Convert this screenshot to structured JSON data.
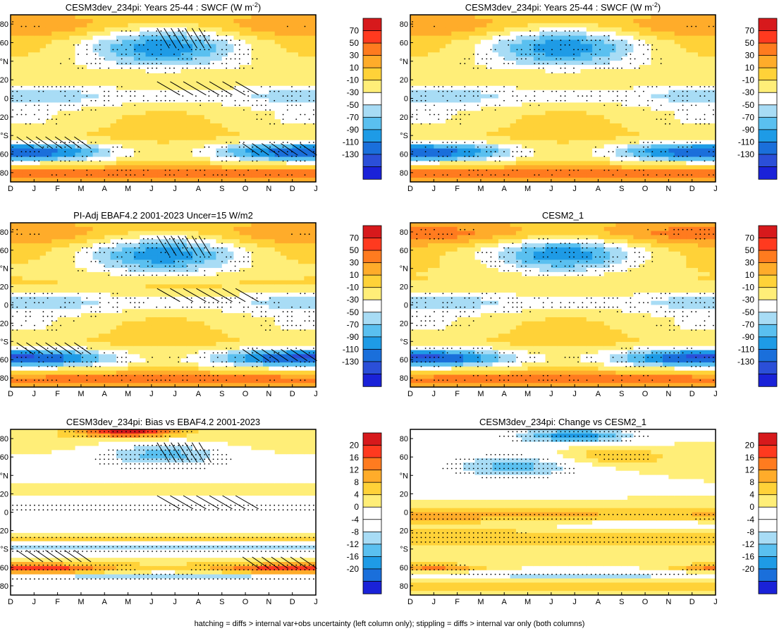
{
  "month_labels": [
    "D",
    "J",
    "F",
    "M",
    "A",
    "M",
    "J",
    "J",
    "A",
    "S",
    "O",
    "N",
    "D",
    "J"
  ],
  "lat_labels": [
    "80",
    "60",
    "°N",
    "20",
    "0",
    "20",
    "°S",
    "60",
    "80"
  ],
  "footer": "hatching = diffs > internal var+obs uncertainty (left column only); stippling = diffs > internal var only (both columns)",
  "chart_data": [
    {
      "type": "heatmap",
      "kind": "mean",
      "title": "CESM3dev_234pi: Years 25-44 : SWCF (W m",
      "title_sup": "-2",
      "title_close": ")",
      "colorbar_levels": [
        70,
        50,
        30,
        10,
        -10,
        -30,
        -50,
        -70,
        -90,
        -110,
        -130
      ],
      "hatched": true,
      "stippled": true
    },
    {
      "type": "heatmap",
      "kind": "mean",
      "title": "CESM3dev_234pi: Years 25-44 : SWCF (W m",
      "title_sup": "-2",
      "title_close": ")",
      "colorbar_levels": [
        70,
        50,
        30,
        10,
        -10,
        -30,
        -50,
        -70,
        -90,
        -110,
        -130
      ],
      "hatched": false,
      "stippled": true
    },
    {
      "type": "heatmap",
      "kind": "obs",
      "title": "PI-Adj EBAF4.2 2001-2023 Uncer=15 W/m2",
      "colorbar_levels": [
        70,
        50,
        30,
        10,
        -10,
        -30,
        -50,
        -70,
        -90,
        -110,
        -130
      ],
      "hatched": true,
      "stippled": true
    },
    {
      "type": "heatmap",
      "kind": "model",
      "title": "CESM2_1",
      "colorbar_levels": [
        70,
        50,
        30,
        10,
        -10,
        -30,
        -50,
        -70,
        -90,
        -110,
        -130
      ],
      "hatched": false,
      "stippled": true
    },
    {
      "type": "heatmap",
      "kind": "bias",
      "title": "CESM3dev_234pi: Bias vs EBAF4.2 2001-2023",
      "colorbar_levels": [
        20,
        16,
        12,
        8,
        4,
        0,
        -4,
        -8,
        -12,
        -16,
        -20
      ],
      "hatched": true,
      "stippled": true
    },
    {
      "type": "heatmap",
      "kind": "change",
      "title": "CESM3dev_234pi: Change vs CESM2_1",
      "colorbar_levels": [
        20,
        16,
        12,
        8,
        4,
        0,
        -4,
        -8,
        -12,
        -16,
        -20
      ],
      "hatched": false,
      "stippled": true
    }
  ],
  "mean_palette": [
    "#d7191c",
    "#ff3a1f",
    "#ff7b1f",
    "#ffac2a",
    "#ffd238",
    "#ffee78",
    "#ffffff",
    "#a8dcf5",
    "#5ac0f0",
    "#1e9be6",
    "#1a6fdb",
    "#2b4fd8",
    "#1a22d8"
  ],
  "diff_palette": [
    "#d7191c",
    "#ff3a1f",
    "#ff7b1f",
    "#ffac2a",
    "#ffd238",
    "#ffee78",
    "#ffffff",
    "#ffffff",
    "#a8dcf5",
    "#5ac0f0",
    "#1e9be6",
    "#1a6fdb",
    "#1a22d8"
  ]
}
